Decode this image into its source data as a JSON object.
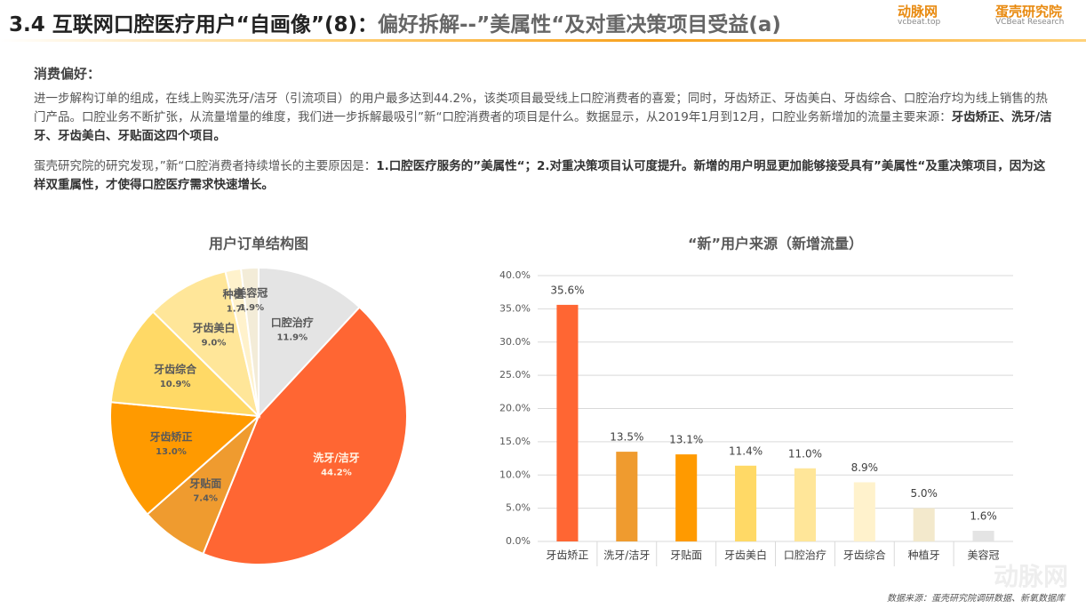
{
  "header": {
    "title_parts": [
      "3.4 互联网口腔医疗用户“自画像”(8)：",
      "偏好拆解--”美属性“及对重决策项目受益(a)"
    ],
    "logos": [
      {
        "name": "动脉网",
        "sub": "vcbeat.top"
      },
      {
        "name": "蛋壳研究院",
        "sub": "VCBeat Research"
      }
    ]
  },
  "body": {
    "heading": "消费偏好：",
    "paragraphs": [
      [
        "进一步解构订单的组成，在线上购买洗牙/洁牙（引流项目）的用户最多达到44.2%，该类项目最受线上口腔消费者的喜爱；同时，牙齿矫正、牙齿美白、牙齿综合、口腔治疗均为线上销售的热门产品。口腔业务不断扩张，从流量增量的维度，我们进一步拆解最吸引”新“口腔消费者的项目是什么。数据显示，从2019年1月到12月，口腔业务新增加的流量主要来源：",
        "牙齿矫正、洗牙/洁牙、牙齿美白、牙贴面这四个项目。"
      ],
      [
        "蛋壳研究院的研究发现，”新“口腔消费者持续增长的主要原因是：",
        "1.口腔医疗服务的”美属性“；2.对重决策项目认可度提升。新增的用户明显更加能够接受具有”美属性“及重决策项目，因为这样双重属性，才使得口腔医疗需求快速增长。"
      ]
    ]
  },
  "chart_data": [
    {
      "type": "pie",
      "title": "用户订单结构图",
      "categories": [
        "口腔治疗",
        "洗牙/洁牙",
        "牙贴面",
        "牙齿矫正",
        "牙齿综合",
        "牙齿美白",
        "种植牙",
        "美容冠"
      ],
      "values": [
        11.9,
        44.2,
        7.4,
        13.0,
        10.9,
        9.0,
        1.7,
        1.9
      ],
      "value_labels": [
        "11.9%",
        "44.2%",
        "7.4%",
        "13.0%",
        "10.9%",
        "9.0%",
        "1.7%",
        "1.9%"
      ],
      "colors": [
        "#e4e4e4",
        "#ff6633",
        "#ef9b2f",
        "#ff9a00",
        "#ffd966",
        "#ffe699",
        "#fff2cc",
        "#f3ecd8"
      ]
    },
    {
      "type": "bar",
      "title": "“新”用户来源（新增流量）",
      "categories": [
        "牙齿矫正",
        "洗牙/洁牙",
        "牙贴面",
        "牙齿美白",
        "口腔治疗",
        "牙齿综合",
        "种植牙",
        "美容冠"
      ],
      "values": [
        35.6,
        13.5,
        13.1,
        11.4,
        11.0,
        8.9,
        5.0,
        1.6
      ],
      "value_labels": [
        "35.6%",
        "13.5%",
        "13.1%",
        "11.4%",
        "11.0%",
        "8.9%",
        "5.0%",
        "1.6%"
      ],
      "colors": [
        "#ff6633",
        "#ef9b2f",
        "#ff9a00",
        "#ffd966",
        "#ffe699",
        "#fff2cc",
        "#f3e9cc",
        "#e4e4e4"
      ],
      "ylim": [
        0,
        40
      ],
      "yticks": [
        {
          "value": 0,
          "label": "0.0%"
        },
        {
          "value": 5,
          "label": "5.0%"
        },
        {
          "value": 10,
          "label": "10.0%"
        },
        {
          "value": 15,
          "label": "15.0%"
        },
        {
          "value": 20,
          "label": "20.0%"
        },
        {
          "value": 25,
          "label": "25.0%"
        },
        {
          "value": 30,
          "label": "30.0%"
        },
        {
          "value": 35,
          "label": "35.0%"
        },
        {
          "value": 40,
          "label": "40.0%"
        }
      ],
      "grid": true
    }
  ],
  "source": "数据来源：蛋壳研究院调研数据、新氧数据库"
}
